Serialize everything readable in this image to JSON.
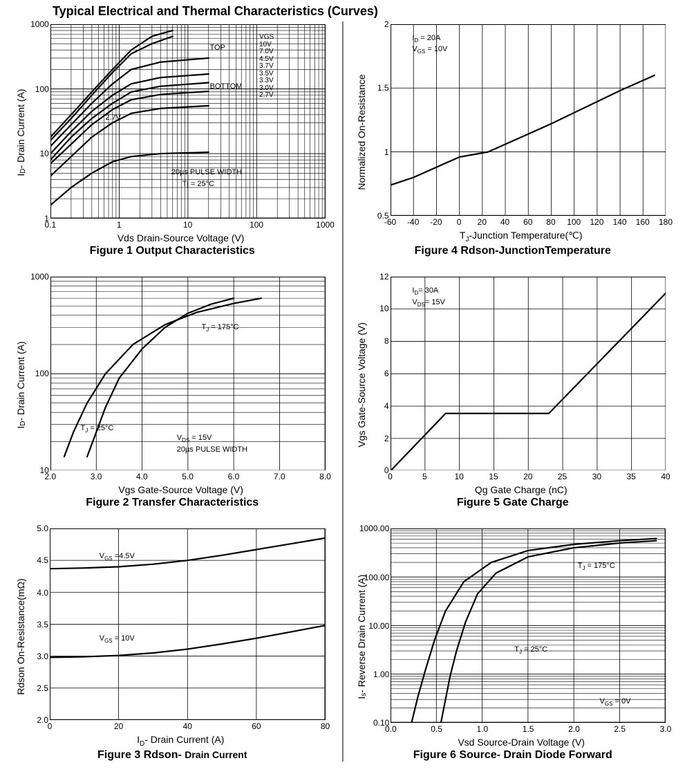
{
  "page_title": "Typical Electrical and Thermal Characteristics (Curves)",
  "colors": {
    "axis": "#000000",
    "grid": "#000000",
    "curve": "#000000",
    "background": "#ffffff"
  },
  "grid_stroke_width": 0.8,
  "curve_stroke_width": 2.2,
  "axis_stroke_width": 2.0,
  "fig1": {
    "caption": "Figure 1 Output Characteristics",
    "xlabel": "Vds Drain-Source Voltage (V)",
    "ylabel": "I_D- Drain Current (A)",
    "ylabel_sub": "D",
    "ylabel_prefix": "I",
    "ylabel_suffix": "- Drain Current (A)",
    "xscale": "log",
    "yscale": "log",
    "xlim": [
      0.1,
      1000
    ],
    "ylim": [
      1,
      1000
    ],
    "xticks": [
      0.1,
      1,
      10,
      100,
      1000
    ],
    "yticks": [
      1,
      10,
      100,
      1000
    ],
    "legend_header": "VGS",
    "legend_items": [
      "10V",
      "7.0V",
      "4.5V",
      "3.7V",
      "3.5V",
      "3.3V",
      "3.0V",
      "2.7V"
    ],
    "legend_top": "TOP",
    "legend_bottom": "BOTTOM",
    "note_pulse": "20µs PULSE WIDTH",
    "note_tj": "Tj = 25°C",
    "note_27v": "2.7V",
    "series": [
      {
        "pts": [
          [
            0.1,
            18
          ],
          [
            0.2,
            40
          ],
          [
            0.4,
            90
          ],
          [
            0.8,
            200
          ],
          [
            1.5,
            400
          ],
          [
            3,
            650
          ],
          [
            6,
            800
          ]
        ]
      },
      {
        "pts": [
          [
            0.1,
            16
          ],
          [
            0.2,
            35
          ],
          [
            0.4,
            80
          ],
          [
            0.8,
            180
          ],
          [
            1.5,
            350
          ],
          [
            3,
            500
          ],
          [
            6,
            650
          ]
        ]
      },
      {
        "pts": [
          [
            0.1,
            13
          ],
          [
            0.2,
            28
          ],
          [
            0.4,
            60
          ],
          [
            0.8,
            120
          ],
          [
            1.5,
            200
          ],
          [
            4,
            260
          ],
          [
            20,
            300
          ]
        ]
      },
      {
        "pts": [
          [
            0.1,
            10
          ],
          [
            0.2,
            22
          ],
          [
            0.4,
            45
          ],
          [
            0.8,
            80
          ],
          [
            1.5,
            120
          ],
          [
            4,
            150
          ],
          [
            20,
            170
          ]
        ]
      },
      {
        "pts": [
          [
            0.1,
            8
          ],
          [
            0.2,
            18
          ],
          [
            0.4,
            35
          ],
          [
            0.8,
            60
          ],
          [
            1.5,
            90
          ],
          [
            4,
            110
          ],
          [
            20,
            125
          ]
        ]
      },
      {
        "pts": [
          [
            0.1,
            7
          ],
          [
            0.2,
            14
          ],
          [
            0.4,
            28
          ],
          [
            0.8,
            48
          ],
          [
            1.5,
            68
          ],
          [
            4,
            82
          ],
          [
            20,
            92
          ]
        ]
      },
      {
        "pts": [
          [
            0.1,
            4.5
          ],
          [
            0.2,
            9
          ],
          [
            0.4,
            18
          ],
          [
            0.8,
            30
          ],
          [
            1.5,
            42
          ],
          [
            4,
            50
          ],
          [
            20,
            55
          ]
        ]
      },
      {
        "pts": [
          [
            0.1,
            1.6
          ],
          [
            0.2,
            3
          ],
          [
            0.4,
            5
          ],
          [
            0.8,
            7.5
          ],
          [
            1.5,
            9
          ],
          [
            4,
            10
          ],
          [
            20,
            10.5
          ]
        ]
      }
    ]
  },
  "fig2": {
    "caption": "Figure 2 Transfer Characteristics",
    "xlabel": "Vgs Gate-Source Voltage (V)",
    "ylabel_prefix": "I",
    "ylabel_sub": "D",
    "ylabel_suffix": "- Drain Current (A)",
    "xscale": "linear",
    "yscale": "log",
    "xlim": [
      2.0,
      8.0
    ],
    "ylim": [
      10,
      1000
    ],
    "xticks": [
      2.0,
      3.0,
      4.0,
      5.0,
      6.0,
      7.0,
      8.0
    ],
    "yticks": [
      10,
      100,
      1000
    ],
    "note_tj25": "T_J = 25°C",
    "note_tj175": "T_J = 175°C",
    "note_vds": "V_DS = 15V",
    "note_pulse": "20µs PULSE WIDTH",
    "series": [
      {
        "name": "25C",
        "pts": [
          [
            2.8,
            14
          ],
          [
            3.0,
            25
          ],
          [
            3.2,
            45
          ],
          [
            3.5,
            90
          ],
          [
            4.0,
            180
          ],
          [
            4.5,
            300
          ],
          [
            5.0,
            420
          ],
          [
            5.5,
            520
          ],
          [
            6.0,
            600
          ]
        ]
      },
      {
        "name": "175C",
        "pts": [
          [
            2.3,
            14
          ],
          [
            2.5,
            25
          ],
          [
            2.8,
            50
          ],
          [
            3.2,
            100
          ],
          [
            3.8,
            200
          ],
          [
            4.5,
            320
          ],
          [
            5.2,
            430
          ],
          [
            6.0,
            530
          ],
          [
            6.6,
            600
          ]
        ]
      }
    ]
  },
  "fig3": {
    "caption": "Figure 3 Rdson- Drain Current",
    "xlabel_prefix": "I",
    "xlabel_sub": "D",
    "xlabel_suffix": "- Drain Current (A)",
    "ylabel": "Rdson On-Resistance(mΩ)",
    "xscale": "linear",
    "yscale": "linear",
    "xlim": [
      0,
      80
    ],
    "ylim": [
      2.0,
      5.0
    ],
    "xticks": [
      0,
      20,
      40,
      60,
      80
    ],
    "yticks": [
      2.0,
      2.5,
      3.0,
      3.5,
      4.0,
      4.5,
      5.0
    ],
    "note_45": "V_GS =4.5V",
    "note_10": "V_GS = 10V",
    "series": [
      {
        "name": "4.5V",
        "pts": [
          [
            0,
            4.37
          ],
          [
            10,
            4.38
          ],
          [
            20,
            4.4
          ],
          [
            30,
            4.44
          ],
          [
            40,
            4.5
          ],
          [
            50,
            4.58
          ],
          [
            60,
            4.67
          ],
          [
            70,
            4.76
          ],
          [
            80,
            4.85
          ]
        ]
      },
      {
        "name": "10V",
        "pts": [
          [
            0,
            2.98
          ],
          [
            10,
            2.99
          ],
          [
            20,
            3.01
          ],
          [
            30,
            3.05
          ],
          [
            40,
            3.11
          ],
          [
            50,
            3.19
          ],
          [
            60,
            3.28
          ],
          [
            70,
            3.38
          ],
          [
            80,
            3.48
          ]
        ]
      }
    ]
  },
  "fig4": {
    "caption": "Figure 4 Rdson-JunctionTemperature",
    "xlabel_prefix": "T",
    "xlabel_sub": "J",
    "xlabel_suffix": "-Junction Temperature(℃)",
    "ylabel": "Normalized On-Resistance",
    "xscale": "linear",
    "yscale": "linear",
    "xlim": [
      -60,
      180
    ],
    "ylim": [
      0.5,
      2.0
    ],
    "xticks": [
      -60,
      -40,
      -20,
      0,
      20,
      40,
      60,
      80,
      100,
      120,
      140,
      160,
      180
    ],
    "yticks": [
      0.5,
      1.0,
      1.5,
      2.0
    ],
    "note_id": "I_D = 20A",
    "note_vgs": "V_GS = 10V",
    "series": [
      {
        "pts": [
          [
            -60,
            0.74
          ],
          [
            -40,
            0.8
          ],
          [
            -20,
            0.88
          ],
          [
            0,
            0.96
          ],
          [
            25,
            1.0
          ],
          [
            50,
            1.1
          ],
          [
            80,
            1.22
          ],
          [
            110,
            1.35
          ],
          [
            140,
            1.48
          ],
          [
            170,
            1.6
          ]
        ]
      }
    ]
  },
  "fig5": {
    "caption": "Figure 5 Gate Charge",
    "xlabel": "Qg Gate Charge (nC)",
    "ylabel": "Vgs Gate-Source Voltage (V)",
    "xscale": "linear",
    "yscale": "linear",
    "xlim": [
      0,
      40
    ],
    "ylim": [
      0.0,
      12.0
    ],
    "xticks": [
      0,
      5,
      10,
      15,
      20,
      25,
      30,
      35,
      40
    ],
    "yticks": [
      0.0,
      2.0,
      4.0,
      6.0,
      8.0,
      10.0,
      12.0
    ],
    "note_id": "I_D= 30A",
    "note_vds": "V_DS= 15V",
    "series": [
      {
        "pts": [
          [
            0,
            0.0
          ],
          [
            8,
            3.55
          ],
          [
            23,
            3.55
          ],
          [
            40,
            11.0
          ]
        ]
      }
    ]
  },
  "fig6": {
    "caption": "Figure 6 Source- Drain Diode Forward",
    "xlabel": "Vsd Source-Drain Voltage (V)",
    "ylabel_prefix": "I",
    "ylabel_sub": "s",
    "ylabel_suffix": "- Reverse Drain Current (A)",
    "xscale": "linear",
    "yscale": "log",
    "xlim": [
      0.0,
      3.0
    ],
    "ylim": [
      0.1,
      1000.0
    ],
    "xticks": [
      0.0,
      0.5,
      1.0,
      1.5,
      2.0,
      2.5,
      3.0
    ],
    "yticks": [
      0.1,
      1.0,
      10.0,
      100.0,
      1000.0
    ],
    "note_175": "T_J = 175°C",
    "note_25": "T_J = 25°C",
    "note_vgs": "V_GS = 0V",
    "series": [
      {
        "name": "175C",
        "pts": [
          [
            0.23,
            0.1
          ],
          [
            0.3,
            0.35
          ],
          [
            0.38,
            1.2
          ],
          [
            0.48,
            5
          ],
          [
            0.6,
            20
          ],
          [
            0.8,
            80
          ],
          [
            1.1,
            200
          ],
          [
            1.5,
            350
          ],
          [
            2.0,
            470
          ],
          [
            2.5,
            560
          ],
          [
            2.9,
            620
          ]
        ]
      },
      {
        "name": "25C",
        "pts": [
          [
            0.55,
            0.1
          ],
          [
            0.6,
            0.3
          ],
          [
            0.65,
            0.9
          ],
          [
            0.72,
            3
          ],
          [
            0.82,
            12
          ],
          [
            0.95,
            45
          ],
          [
            1.15,
            120
          ],
          [
            1.5,
            260
          ],
          [
            2.0,
            400
          ],
          [
            2.5,
            500
          ],
          [
            2.9,
            560
          ]
        ]
      }
    ]
  }
}
